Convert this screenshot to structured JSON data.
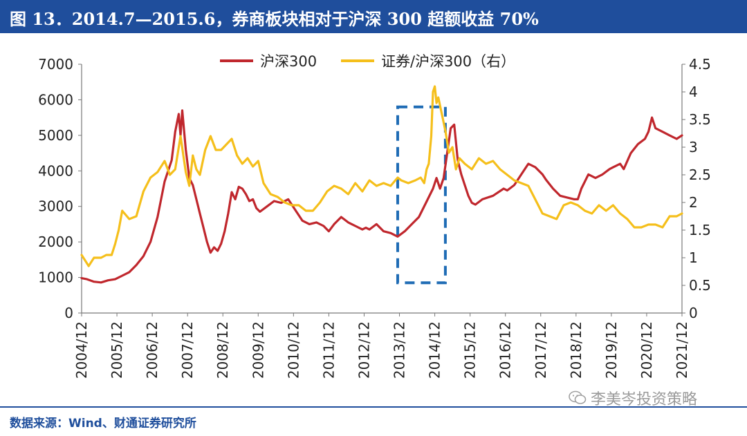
{
  "header": {
    "title": "图 13．2014.7—2015.6，券商板块相对于沪深 300 超额收益 70%"
  },
  "footer": {
    "source": "数据来源：Wind、财通证券研究所",
    "watermark": "李美岑投资策略"
  },
  "colors": {
    "series_csi300": "#c0272d",
    "series_ratio": "#f5bf1b",
    "highlight_box": "#1f6cb5",
    "header_bg": "#1f4e9c"
  },
  "chart_data": {
    "type": "line",
    "title": "2014.7—2015.6，券商板块相对于沪深 300 超额收益 70%",
    "x_tick_labels": [
      "2004/12",
      "2005/12",
      "2006/12",
      "2007/12",
      "2008/12",
      "2009/12",
      "2010/12",
      "2011/12",
      "2012/12",
      "2013/12",
      "2014/12",
      "2015/12",
      "2016/12",
      "2017/12",
      "2018/12",
      "2019/12",
      "2020/12",
      "2021/12"
    ],
    "x_range": [
      2004.95,
      2021.95
    ],
    "y_left": {
      "range": [
        0,
        7000
      ],
      "ticks": [
        0,
        1000,
        2000,
        3000,
        4000,
        5000,
        6000,
        7000
      ],
      "labels": [
        "0",
        "1000",
        "2000",
        "3000",
        "4000",
        "5000",
        "6000",
        "7000"
      ]
    },
    "y_right": {
      "range": [
        0,
        4.5
      ],
      "ticks": [
        0,
        0.5,
        1,
        1.5,
        2,
        2.5,
        3,
        3.5,
        4,
        4.5
      ],
      "labels": [
        "0",
        "0.5",
        "1",
        "1.5",
        "2",
        "2.5",
        "3",
        "3.5",
        "4",
        "4.5"
      ]
    },
    "legend": {
      "position": "top-center",
      "items": [
        "沪深300",
        "证券/沪深300（右）"
      ]
    },
    "highlight": {
      "x_start": 2013.9,
      "x_end": 2015.25,
      "y_left_low": 850,
      "y_left_high": 5800
    },
    "series": [
      {
        "name": "沪深300",
        "axis": "left",
        "x": [
          2004.95,
          2005.1,
          2005.3,
          2005.5,
          2005.7,
          2005.9,
          2006.1,
          2006.3,
          2006.5,
          2006.7,
          2006.9,
          2007.1,
          2007.3,
          2007.5,
          2007.6,
          2007.7,
          2007.75,
          2007.8,
          2007.9,
          2008.0,
          2008.1,
          2008.2,
          2008.3,
          2008.4,
          2008.5,
          2008.6,
          2008.7,
          2008.8,
          2008.9,
          2009.0,
          2009.1,
          2009.2,
          2009.3,
          2009.4,
          2009.5,
          2009.6,
          2009.7,
          2009.8,
          2009.9,
          2010.0,
          2010.2,
          2010.4,
          2010.6,
          2010.8,
          2010.9,
          2011.0,
          2011.2,
          2011.4,
          2011.6,
          2011.8,
          2011.95,
          2012.1,
          2012.3,
          2012.5,
          2012.7,
          2012.9,
          2013.0,
          2013.1,
          2013.3,
          2013.5,
          2013.7,
          2013.9,
          2014.1,
          2014.3,
          2014.5,
          2014.7,
          2014.9,
          2015.0,
          2015.1,
          2015.2,
          2015.3,
          2015.4,
          2015.5,
          2015.6,
          2015.7,
          2015.8,
          2015.9,
          2016.0,
          2016.1,
          2016.3,
          2016.6,
          2016.9,
          2017.0,
          2017.2,
          2017.4,
          2017.6,
          2017.8,
          2017.9,
          2018.0,
          2018.1,
          2018.3,
          2018.5,
          2018.7,
          2018.9,
          2019.0,
          2019.1,
          2019.3,
          2019.5,
          2019.7,
          2019.9,
          2020.0,
          2020.2,
          2020.3,
          2020.5,
          2020.7,
          2020.9,
          2021.0,
          2021.1,
          2021.2,
          2021.4,
          2021.6,
          2021.8,
          2021.95
        ],
        "values": [
          980,
          950,
          880,
          860,
          920,
          950,
          1050,
          1150,
          1350,
          1600,
          2000,
          2700,
          3700,
          4300,
          5100,
          5600,
          5000,
          5700,
          4600,
          3800,
          3600,
          3200,
          2800,
          2400,
          2000,
          1700,
          1850,
          1750,
          1950,
          2300,
          2800,
          3400,
          3200,
          3550,
          3500,
          3350,
          3150,
          3200,
          2950,
          2850,
          3000,
          3150,
          3100,
          3200,
          3050,
          2900,
          2600,
          2500,
          2550,
          2450,
          2300,
          2500,
          2700,
          2550,
          2450,
          2350,
          2400,
          2350,
          2500,
          2300,
          2250,
          2150,
          2300,
          2500,
          2700,
          3100,
          3500,
          3800,
          3500,
          3800,
          4500,
          5200,
          5300,
          4300,
          3900,
          3600,
          3300,
          3100,
          3050,
          3200,
          3300,
          3500,
          3450,
          3600,
          3900,
          4200,
          4100,
          4000,
          3900,
          3750,
          3500,
          3300,
          3250,
          3200,
          3200,
          3500,
          3900,
          3800,
          3900,
          4050,
          4100,
          4200,
          4050,
          4500,
          4750,
          4900,
          5100,
          5500,
          5200,
          5100,
          5000,
          4900,
          5000
        ]
      },
      {
        "name": "证券/沪深300（右）",
        "axis": "right",
        "x": [
          2004.95,
          2005.05,
          2005.15,
          2005.3,
          2005.5,
          2005.65,
          2005.8,
          2005.9,
          2006.0,
          2006.1,
          2006.3,
          2006.5,
          2006.7,
          2006.9,
          2007.1,
          2007.3,
          2007.45,
          2007.6,
          2007.75,
          2007.9,
          2008.0,
          2008.1,
          2008.2,
          2008.3,
          2008.45,
          2008.6,
          2008.75,
          2008.9,
          2009.05,
          2009.2,
          2009.35,
          2009.5,
          2009.65,
          2009.8,
          2009.95,
          2010.1,
          2010.3,
          2010.5,
          2010.7,
          2010.9,
          2011.1,
          2011.3,
          2011.5,
          2011.7,
          2011.9,
          2012.1,
          2012.3,
          2012.5,
          2012.7,
          2012.9,
          2013.1,
          2013.3,
          2013.5,
          2013.7,
          2013.9,
          2014.0,
          2014.2,
          2014.4,
          2014.55,
          2014.65,
          2014.72,
          2014.78,
          2014.85,
          2014.9,
          2014.95,
          2015.0,
          2015.05,
          2015.15,
          2015.25,
          2015.35,
          2015.45,
          2015.55,
          2015.65,
          2015.8,
          2016.0,
          2016.2,
          2016.4,
          2016.6,
          2016.8,
          2017.0,
          2017.2,
          2017.4,
          2017.6,
          2017.8,
          2018.0,
          2018.2,
          2018.4,
          2018.6,
          2018.8,
          2019.0,
          2019.2,
          2019.4,
          2019.6,
          2019.8,
          2020.0,
          2020.2,
          2020.4,
          2020.6,
          2020.8,
          2021.0,
          2021.2,
          2021.4,
          2021.6,
          2021.8,
          2021.95
        ],
        "values": [
          1.05,
          0.95,
          0.85,
          1.0,
          1.0,
          1.05,
          1.05,
          1.25,
          1.5,
          1.85,
          1.7,
          1.75,
          2.2,
          2.45,
          2.55,
          2.75,
          2.5,
          2.6,
          3.2,
          2.55,
          2.3,
          2.85,
          2.6,
          2.5,
          2.95,
          3.2,
          2.95,
          2.95,
          3.05,
          3.15,
          2.85,
          2.7,
          2.8,
          2.65,
          2.75,
          2.35,
          2.15,
          2.1,
          2.0,
          1.95,
          1.95,
          1.85,
          1.85,
          2.0,
          2.2,
          2.3,
          2.25,
          2.15,
          2.35,
          2.2,
          2.4,
          2.3,
          2.35,
          2.3,
          2.45,
          2.4,
          2.35,
          2.4,
          2.45,
          2.35,
          2.6,
          2.7,
          3.2,
          4.0,
          4.1,
          3.8,
          3.9,
          3.6,
          3.3,
          2.9,
          3.0,
          2.6,
          2.8,
          2.7,
          2.6,
          2.8,
          2.7,
          2.75,
          2.6,
          2.5,
          2.4,
          2.35,
          2.3,
          2.05,
          1.8,
          1.75,
          1.7,
          1.95,
          2.0,
          1.95,
          1.85,
          1.8,
          1.95,
          1.85,
          1.95,
          1.8,
          1.7,
          1.55,
          1.55,
          1.6,
          1.6,
          1.55,
          1.75,
          1.75,
          1.8
        ]
      }
    ]
  }
}
